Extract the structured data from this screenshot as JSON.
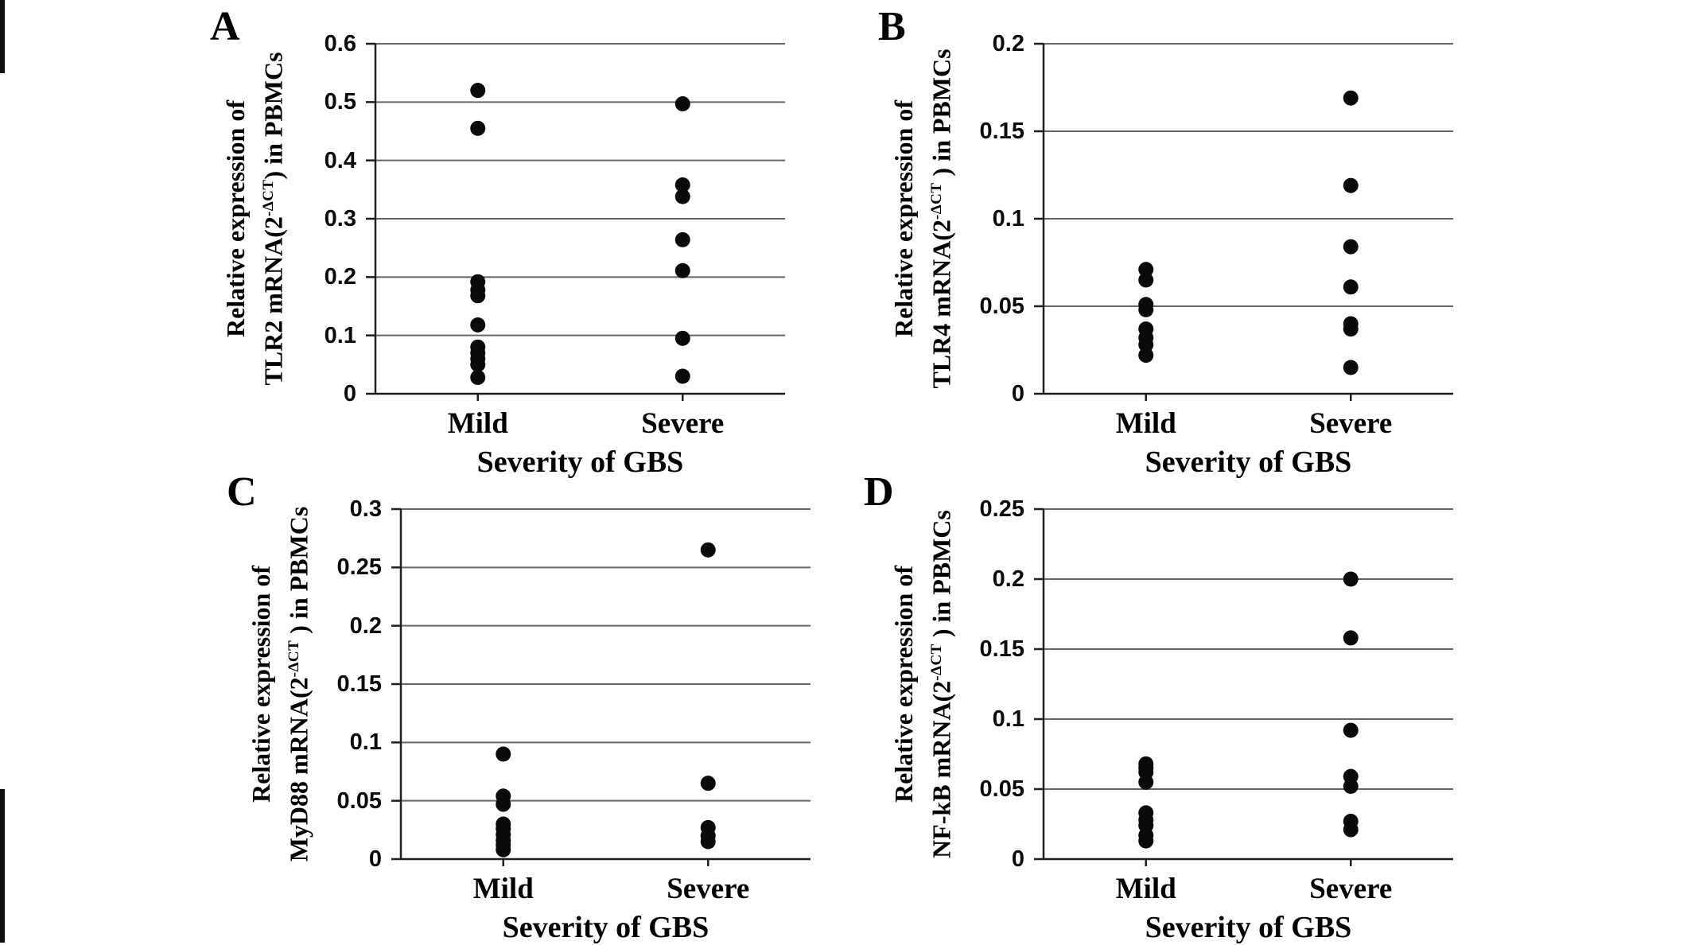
{
  "figure": {
    "background": "#ffffff",
    "colors": {
      "dot": "#0a0a0a",
      "grid": "#666666",
      "axis": "#1f1f1f",
      "text": "#000000"
    }
  },
  "chart_data": [
    {
      "panel": "A",
      "type": "scatter",
      "ylabel_line1": "Relative expression of",
      "ylabel_gene_prefix": "TLR2 mRNA(2",
      "ylabel_sup": "-ΔCT",
      "ylabel_suffix": ") in PBMCs",
      "xlabel": "Severity of GBS",
      "categories": [
        "Mild",
        "Severe"
      ],
      "category_positions": [
        0.25,
        0.75
      ],
      "ylim": [
        0,
        0.6
      ],
      "yticks": [
        "0",
        "0.1",
        "0.2",
        "0.3",
        "0.4",
        "0.5",
        "0.6"
      ],
      "series": [
        {
          "name": "Mild",
          "values": [
            0.52,
            0.455,
            0.192,
            0.178,
            0.168,
            0.118,
            0.08,
            0.07,
            0.06,
            0.05,
            0.028
          ]
        },
        {
          "name": "Severe",
          "values": [
            0.497,
            0.358,
            0.338,
            0.264,
            0.211,
            0.095,
            0.03
          ]
        }
      ]
    },
    {
      "panel": "B",
      "type": "scatter",
      "ylabel_line1": "Relative expression of",
      "ylabel_gene_prefix": "TLR4 mRNA(2",
      "ylabel_sup": "-ΔCT",
      "ylabel_suffix": " ) in PBMCs",
      "xlabel": "Severity of GBS",
      "categories": [
        "Mild",
        "Severe"
      ],
      "category_positions": [
        0.25,
        0.75
      ],
      "ylim": [
        0,
        0.2
      ],
      "yticks": [
        "0",
        "0.05",
        "0.1",
        "0.15",
        "0.2"
      ],
      "series": [
        {
          "name": "Mild",
          "values": [
            0.071,
            0.065,
            0.051,
            0.048,
            0.037,
            0.032,
            0.028,
            0.022
          ]
        },
        {
          "name": "Severe",
          "values": [
            0.169,
            0.119,
            0.084,
            0.061,
            0.04,
            0.037,
            0.015
          ]
        }
      ]
    },
    {
      "panel": "C",
      "type": "scatter",
      "ylabel_line1": "Relative expression of",
      "ylabel_gene_prefix": "MyD88 mRNA(2",
      "ylabel_sup": "-ΔCT",
      "ylabel_suffix": " ) in PBMCs",
      "xlabel": "Severity of GBS",
      "categories": [
        "Mild",
        "Severe"
      ],
      "category_positions": [
        0.25,
        0.75
      ],
      "ylim": [
        0,
        0.3
      ],
      "yticks": [
        "0",
        "0.05",
        "0.1",
        "0.15",
        "0.2",
        "0.25",
        "0.3"
      ],
      "series": [
        {
          "name": "Mild",
          "values": [
            0.09,
            0.054,
            0.047,
            0.03,
            0.026,
            0.021,
            0.016,
            0.012,
            0.008
          ]
        },
        {
          "name": "Severe",
          "values": [
            0.265,
            0.065,
            0.027,
            0.02,
            0.015
          ]
        }
      ]
    },
    {
      "panel": "D",
      "type": "scatter",
      "ylabel_line1": "Relative expression of",
      "ylabel_gene_prefix": "NF-kB mRNA(2",
      "ylabel_sup": "-ΔCT",
      "ylabel_suffix": " ) in PBMCs",
      "xlabel": "Severity of GBS",
      "categories": [
        "Mild",
        "Severe"
      ],
      "category_positions": [
        0.25,
        0.75
      ],
      "ylim": [
        0,
        0.25
      ],
      "yticks": [
        "0",
        "0.05",
        "0.1",
        "0.15",
        "0.2",
        "0.25"
      ],
      "series": [
        {
          "name": "Mild",
          "values": [
            0.068,
            0.065,
            0.062,
            0.055,
            0.033,
            0.028,
            0.024,
            0.017,
            0.013
          ]
        },
        {
          "name": "Severe",
          "values": [
            0.2,
            0.158,
            0.092,
            0.059,
            0.052,
            0.027,
            0.021
          ]
        }
      ]
    }
  ]
}
